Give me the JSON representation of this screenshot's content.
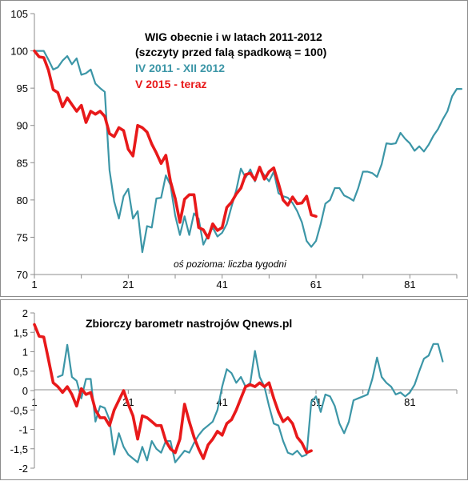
{
  "colors": {
    "teal": "#3c96a7",
    "red": "#e8191a",
    "axis": "#8c8c8c"
  },
  "chart_data": [
    {
      "type": "line",
      "title": "WIG obecnie i w latach 2011-2012",
      "subtitle": "(szczyty przed falą spadkową = 100)",
      "annotation": "oś pozioma: liczba tygodni",
      "xlim": [
        1,
        91
      ],
      "ylim": [
        70,
        105
      ],
      "x_ticks": [
        "1",
        "21",
        "41",
        "61",
        "81"
      ],
      "y_ticks": [
        "70",
        "75",
        "80",
        "85",
        "90",
        "95",
        "100",
        "105"
      ],
      "grid": false,
      "series": [
        {
          "name": "IV 2011 - XII 2012",
          "color": "#3c96a7",
          "values": [
            100,
            100,
            100,
            98.8,
            97.5,
            97.8,
            98.7,
            99.3,
            98.2,
            99,
            96.8,
            97,
            97.5,
            95.6,
            95,
            94.5,
            84,
            79.8,
            77.5,
            80.5,
            81.5,
            77.5,
            78.5,
            73,
            76.5,
            76.3,
            80.2,
            80.3,
            83.3,
            82,
            77.9,
            75.3,
            77.8,
            75.3,
            78.2,
            77.5,
            74,
            75.3,
            76.3,
            75.1,
            75.6,
            76.8,
            79.1,
            81.3,
            84.2,
            83,
            84.1,
            82.5,
            84.2,
            83.3,
            82.5,
            83.8,
            80.9,
            80.5,
            80.3,
            79.6,
            78.5,
            77,
            74.5,
            73.7,
            74.5,
            76.8,
            79.5,
            80,
            81.6,
            81.6,
            80.6,
            80.3,
            79.9,
            81.6,
            83.8,
            83.8,
            83.6,
            83.1,
            84.8,
            87.6,
            87.5,
            87.6,
            89,
            88.2,
            87.6,
            86.6,
            87.2,
            86.5,
            87.4,
            88.6,
            89.5,
            90.8,
            91.9,
            93.9,
            94.9,
            94.9
          ]
        },
        {
          "name": "V 2015 - teraz",
          "color": "#e8191a",
          "values": [
            100,
            99.2,
            99.1,
            97.4,
            94.8,
            94.4,
            92.5,
            93.7,
            92.8,
            91.9,
            92.7,
            90.4,
            91.9,
            91.5,
            91.9,
            91.2,
            88.9,
            88.5,
            89.7,
            89.3,
            86.8,
            85.9,
            90,
            89.7,
            89.1,
            87.5,
            86.3,
            84.9,
            86,
            82.5,
            80.2,
            77,
            80.1,
            80.7,
            80.7,
            76.3,
            76,
            74.9,
            76.8,
            75.9,
            76.3,
            79,
            79.7,
            80.8,
            81.6,
            83.4,
            83.6,
            82.7,
            84.4,
            82.8,
            83.8,
            84.3,
            82.2,
            80,
            79.3,
            80.4,
            79.5,
            79.6,
            80.5,
            78,
            77.8,
            null
          ]
        }
      ]
    },
    {
      "type": "line",
      "title": "Zbiorczy barometr nastrojów Qnews.pl",
      "xlim": [
        1,
        91
      ],
      "ylim": [
        -2,
        2
      ],
      "x_ticks": [
        "1",
        "21",
        "41",
        "61",
        "81"
      ],
      "y_ticks": [
        "-2",
        "-1,5",
        "-1",
        "-0,5",
        "0",
        "0,5",
        "1",
        "1,5",
        "2"
      ],
      "grid": false,
      "series": [
        {
          "name": "IV 2011 - XII 2012",
          "color": "#3c96a7",
          "values": [
            null,
            null,
            null,
            null,
            null,
            0.35,
            0.4,
            1.18,
            0.35,
            0.25,
            -0.2,
            0.3,
            0.3,
            -0.8,
            -0.4,
            -0.45,
            -0.75,
            -1.65,
            -1.1,
            -1.45,
            -1.65,
            -1.75,
            -1.85,
            -1.45,
            -1.8,
            -1.3,
            -1.5,
            -1.6,
            -1.3,
            -1.3,
            -1.85,
            -1.7,
            -1.55,
            -1.6,
            -1.35,
            -1.15,
            -1,
            -0.9,
            -0.8,
            -0.5,
            0.1,
            0.55,
            0.45,
            0.2,
            0.35,
            0.1,
            0.2,
            1.02,
            0.35,
            0.1,
            -0.4,
            -0.85,
            -0.9,
            -1.3,
            -1.6,
            -1.65,
            -1.55,
            -1.7,
            -1.65,
            -0.3,
            -0.15,
            -0.55,
            -0.1,
            -0.15,
            -0.4,
            -0.85,
            -1.1,
            -0.8,
            -0.25,
            -0.2,
            -0.15,
            -0.1,
            0.3,
            0.85,
            0.35,
            0.2,
            0.1,
            -0.1,
            -0.05,
            -0.15,
            -0.05,
            0.15,
            0.5,
            0.82,
            0.9,
            1.2,
            1.2,
            0.75
          ]
        },
        {
          "name": "V 2015 - teraz",
          "color": "#e8191a",
          "values": [
            1.7,
            1.4,
            1.38,
            0.8,
            0.2,
            0.1,
            -0.05,
            0.1,
            -0.1,
            -0.4,
            0.05,
            -0.1,
            -0.05,
            -0.5,
            -0.7,
            -0.7,
            -0.9,
            -0.5,
            -0.25,
            0,
            -0.35,
            -0.65,
            -1.25,
            -0.65,
            -0.7,
            -0.8,
            -0.9,
            -0.9,
            -1.3,
            -1.5,
            -1.6,
            -1.25,
            -0.35,
            -0.8,
            -1.2,
            -1.5,
            -1.75,
            -1.4,
            -1.25,
            -1.05,
            -1.15,
            -0.85,
            -0.75,
            -0.5,
            -0.2,
            0.1,
            0.15,
            0.1,
            0.2,
            0.1,
            0.2,
            -0.2,
            -0.55,
            -0.8,
            -0.7,
            -0.85,
            -1.2,
            -1.35,
            -1.6,
            -1.55,
            null,
            null
          ]
        }
      ]
    }
  ]
}
